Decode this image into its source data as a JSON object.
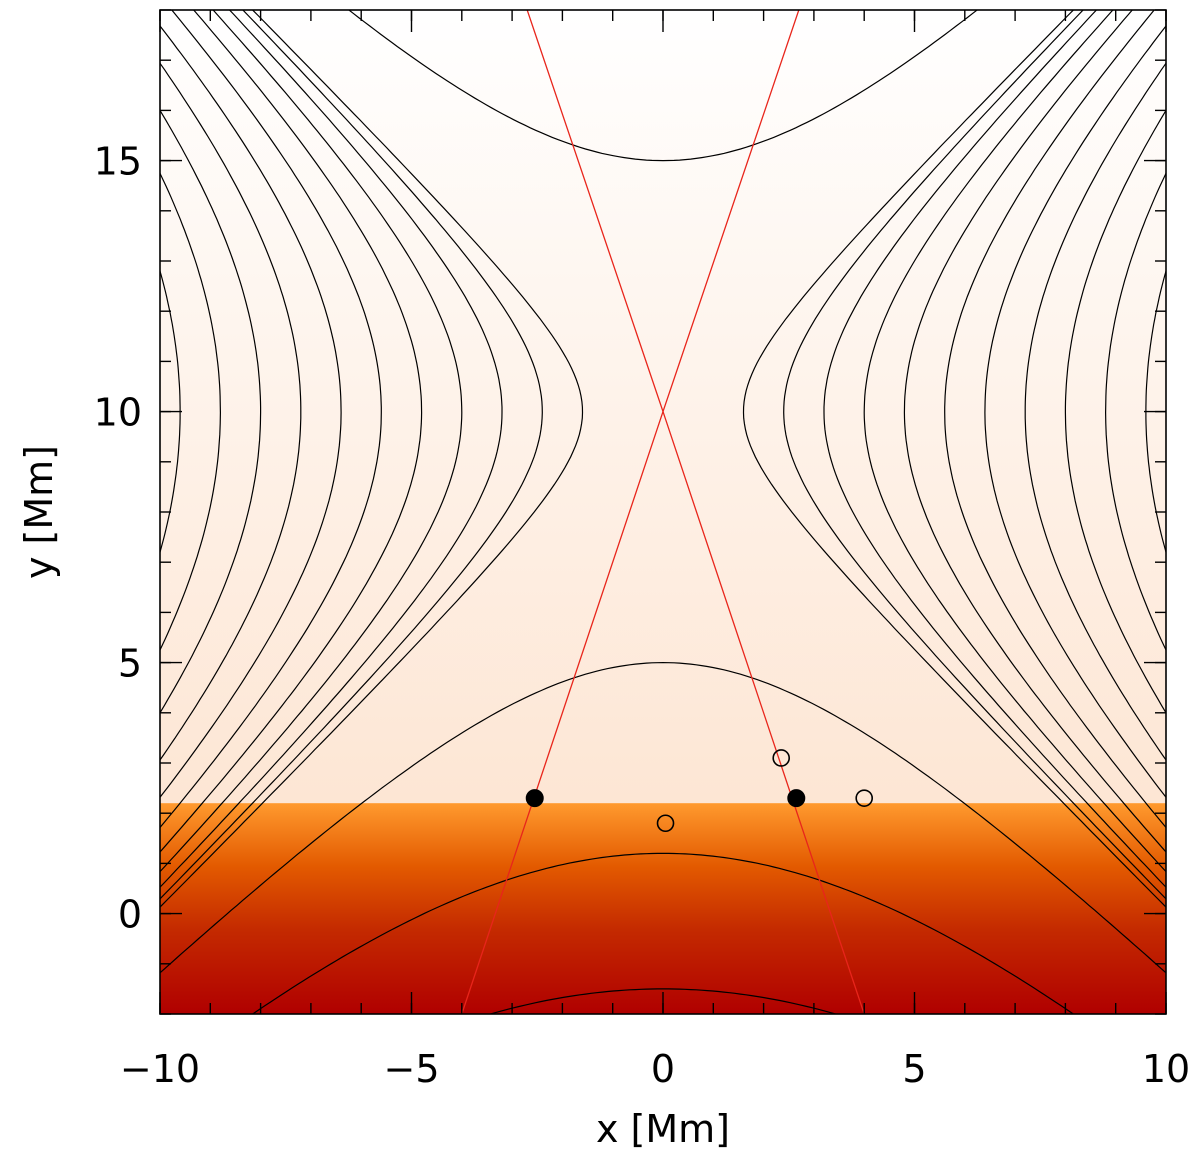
{
  "chart_data": {
    "type": "contour",
    "xlabel": "x [Mm]",
    "ylabel": "y [Mm]",
    "xlim": [
      -10,
      10
    ],
    "ylim": [
      -2,
      18
    ],
    "xticks": [
      -10,
      -5,
      0,
      5,
      10
    ],
    "yticks": [
      0,
      5,
      10,
      15
    ],
    "xtick_labels": [
      "−10",
      "−5",
      "0",
      "5",
      "10"
    ],
    "ytick_labels": [
      "0",
      "5",
      "10",
      "15"
    ],
    "x_minor_step": 1,
    "y_minor_step": 1,
    "background_colors": {
      "upper_top": "#ffffff",
      "upper_bottom": "#fde6d4",
      "lower_top": "#ff9a2e",
      "lower_mid": "#e35a00",
      "lower_deep": "#c42a00",
      "lower_bottom": "#b00000"
    },
    "layer_boundary_y": 2.2,
    "field_lines": {
      "color": "#000000",
      "null_point": [
        0,
        10
      ],
      "vertical_apex_levels": [
        15,
        5,
        1.2,
        -1.5
      ],
      "side_crossing_at_y10": [
        -9.6,
        -8.8,
        -8.0,
        -7.2,
        -6.4,
        -5.6,
        -4.8,
        -4.0,
        -3.2,
        -2.4,
        -1.6,
        1.6,
        2.4,
        3.2,
        4.0,
        4.8,
        5.6,
        6.4,
        7.2,
        8.0,
        8.8,
        9.6
      ]
    },
    "separatrix": {
      "color": "#e8251b",
      "null_point": [
        0,
        10
      ],
      "bottom_x_left": -4.0,
      "bottom_x_right": 4.0,
      "bottom_y": -2,
      "top_x_left": -2.7,
      "top_x_right": 2.7,
      "top_y": 18
    },
    "markers": {
      "filled": [
        {
          "x": -2.55,
          "y": 2.3
        },
        {
          "x": 2.65,
          "y": 2.3
        }
      ],
      "open": [
        {
          "x": 0.05,
          "y": 1.8
        },
        {
          "x": 2.35,
          "y": 3.1
        },
        {
          "x": 4.0,
          "y": 2.3
        }
      ]
    }
  }
}
